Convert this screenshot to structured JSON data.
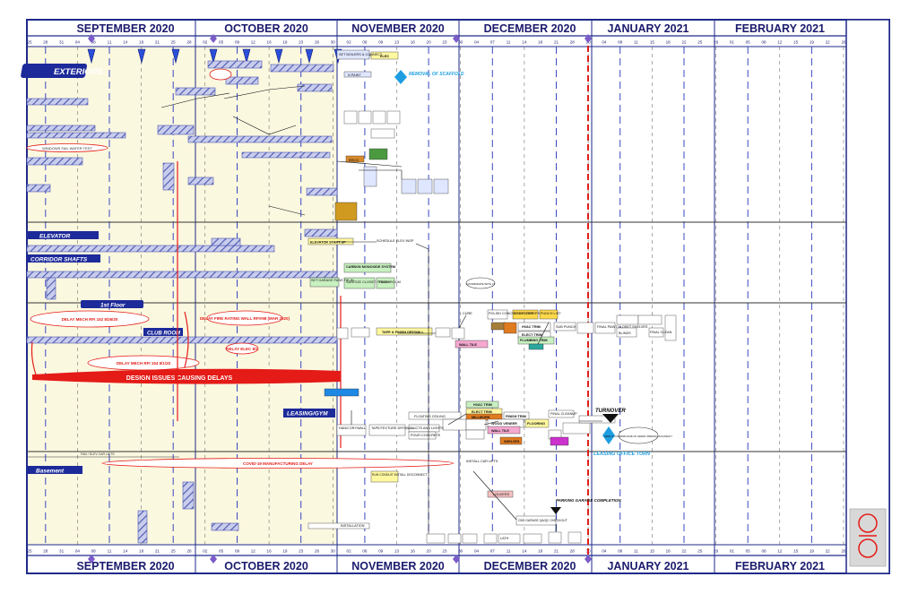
{
  "months_top": [
    "SEPTEMBER 2020",
    "OCTOBER 2020",
    "NOVEMBER 2020",
    "DECEMBER 2020",
    "JANUARY 2021",
    "FEBRUARY 2021"
  ],
  "months_bottom": [
    "SEPTEMBER 2020",
    "OCTOBER 2020",
    "NOVEMBER 2020",
    "DECEMBER 2020",
    "JANUARY 2021",
    "FEBRUARY 2021"
  ],
  "day_ticks": [
    "25",
    "28",
    "31",
    "04",
    "08",
    "11",
    "14",
    "18",
    "21",
    "25",
    "28",
    "02",
    "05",
    "09",
    "12",
    "16",
    "19",
    "23",
    "26",
    "30",
    "02",
    "06",
    "09",
    "13",
    "16",
    "20",
    "23",
    "30",
    "04",
    "07",
    "11",
    "14",
    "18",
    "21",
    "28",
    "30",
    "04",
    "08",
    "11",
    "15",
    "18",
    "22",
    "25",
    "29",
    "01",
    "05",
    "08",
    "12",
    "15",
    "19",
    "22",
    "26"
  ],
  "sections": {
    "exteriors": "EXTERIORS",
    "elevator": "ELEVATOR",
    "corridor_shafts": "CORRIDOR SHAFTS",
    "first_floor": "1st Floor",
    "club_room": "CLUB ROOM",
    "leasing_gym": "LEASING/GYM",
    "basement": "Basement"
  },
  "callouts": {
    "removal_scaffold": "REMOVAL OF SCAFFOLD",
    "design_issues": "DESIGN ISSUES CAUSING DELAYS",
    "covid_delay": "COVID-19 MANUFACTURING DELAY",
    "turnover": "TURNOVER",
    "leasing_office_turn": "LEASING OFFICE TURN",
    "parking_completion": "PARKING GARAGE COMPLETION",
    "delay_mech_rfi_152": "DELAY MECH RFI 152 8/26/20",
    "delay_fire_rating": "DELAY FIRE RATING WALL RFI#98 (MAR 2020)",
    "delay_elec": "DELAY ELEC 8/1",
    "delay_mech_rfi_154": "DELAY MECH RFI 154 9/1/20",
    "windows_test": "WINDOWS FAIL WATER TEST",
    "need_to_confirm": "NEED TO CONFIRM DATE OF GRAND OPENING OCCUPANCY",
    "coordinate": "COORDINATE WITH LT"
  },
  "tasks": {
    "elec": "ELEC",
    "set_boilers": "SET BOILERS & CONNECT",
    "n_paint": "N PAINT",
    "brick": "BRICK",
    "elevator_start_up": "ELEVATOR START UP",
    "schedule_elev_insp": "SCHEDULE ELEV INSP",
    "carbon_monoxide": "CARBON MONOXIDE SYSTEM",
    "set_garage_fans": "SET GARAGE FANS TIE-IN",
    "sanitize_closet": "SANITIZE CLOSET / TRASH",
    "trash_room": "TRASH ROOM",
    "tape_finish": "TAPE & FINISH DRYWALL",
    "cure": "CURE",
    "polish_concrete": "POLISH CONCRETE FLOOR",
    "countertops": "COUNTERTOPS",
    "punch_list": "PUNCH LIST",
    "hvac_trim": "HVAC TRIM",
    "sub_punch": "SUB PUNCH",
    "elect_trim": "ELECT TRIM",
    "plumbing_trim": "PLUMBING TRIM",
    "wall_tile": "WALL TILE",
    "final_paint": "FINAL PAINT",
    "closet_shelves": "CLOSET SHELVES",
    "blinds": "BLINDS",
    "final_clean": "FINAL CLEAN",
    "floating_ceiling": "FLOATING CEILING",
    "millwork": "MILLWORK",
    "finish_trim": "FINISH TRIM",
    "wood_veneer": "WOOD VENEER",
    "flooring": "FLOORING",
    "shelves": "SHELVES",
    "final_cleanup": "FINAL CLEANUP",
    "hang_drywall": "HANG DRYWALL",
    "tape_texture": "TAPE/TEXTURE DRYWALL",
    "ducts_lights": "DUCTS AND LIGHTS",
    "pour_concrete": "POUR CONCRETE",
    "install_car_lifts": "INSTALL CAR LIFTS",
    "run_conduit": "RUN CONDUIT INSTALL DISCONNECT",
    "louvers": "LOUVERS",
    "cbg_garage": "CBG GARAGE QA/QC CHECKOUT",
    "fan_elev": "FAN / ELEV CAR LIFTS",
    "installation": "INSTALLATION",
    "lath": "LATH"
  },
  "colors": {
    "frame": "#1f2a8a",
    "today_line": "#e0201a",
    "shaded_bg": "#fbf8e0",
    "section_banner": "#1d2a9a",
    "hatch": "#6a76c8",
    "milestone": "#2b4fd8",
    "delay_red": "#e41b17"
  }
}
